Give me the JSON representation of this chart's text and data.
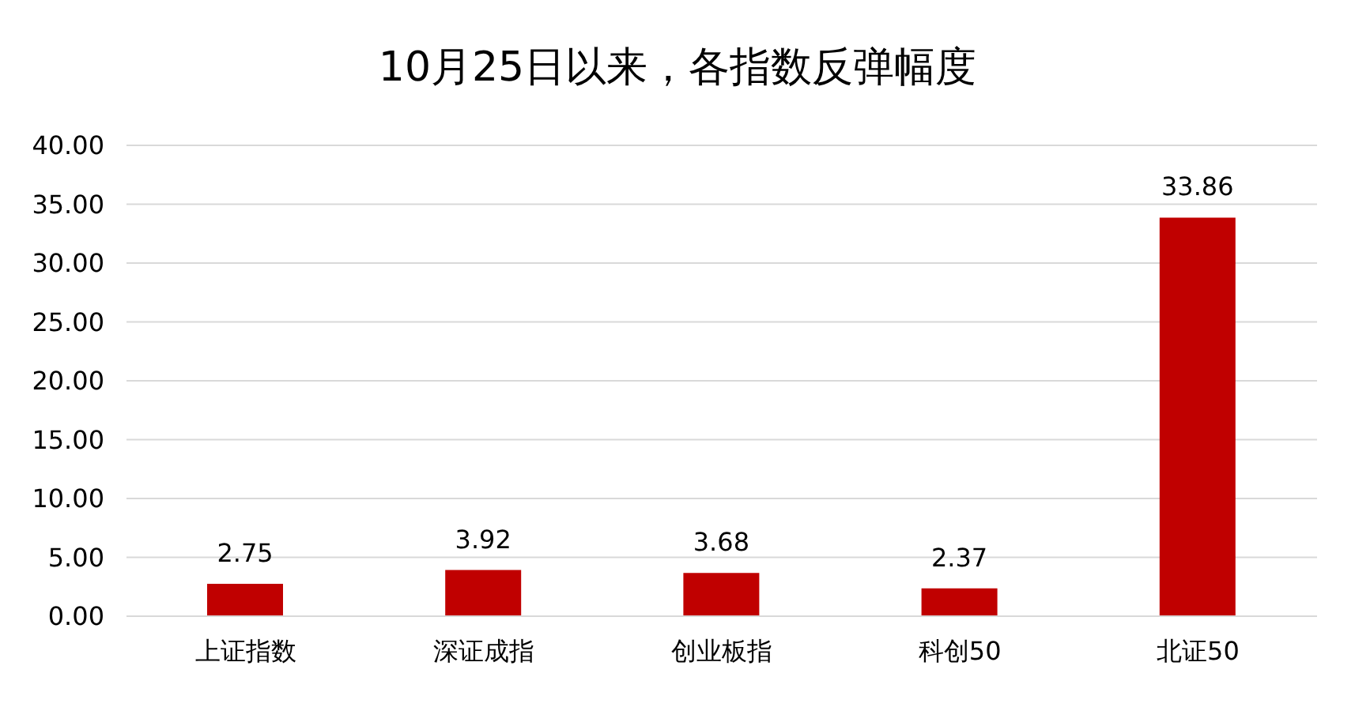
{
  "chart_data": {
    "type": "bar",
    "title": "10月25日以来，各指数反弹幅度",
    "categories": [
      "上证指数",
      "深证成指",
      "创业板指",
      "科创50",
      "北证50"
    ],
    "values": [
      2.75,
      3.92,
      3.68,
      2.37,
      33.86
    ],
    "color": "#c00000",
    "ylim": [
      0,
      40
    ],
    "yticks": [
      {
        "value": 0,
        "label": "0.00"
      },
      {
        "value": 5,
        "label": "5.00"
      },
      {
        "value": 10,
        "label": "10.00"
      },
      {
        "value": 15,
        "label": "15.00"
      },
      {
        "value": 20,
        "label": "20.00"
      },
      {
        "value": 25,
        "label": "25.00"
      },
      {
        "value": 30,
        "label": "30.00"
      },
      {
        "value": 35,
        "label": "35.00"
      },
      {
        "value": 40,
        "label": "40.00"
      }
    ],
    "grid": "y",
    "data_labels": true,
    "legend": false
  }
}
